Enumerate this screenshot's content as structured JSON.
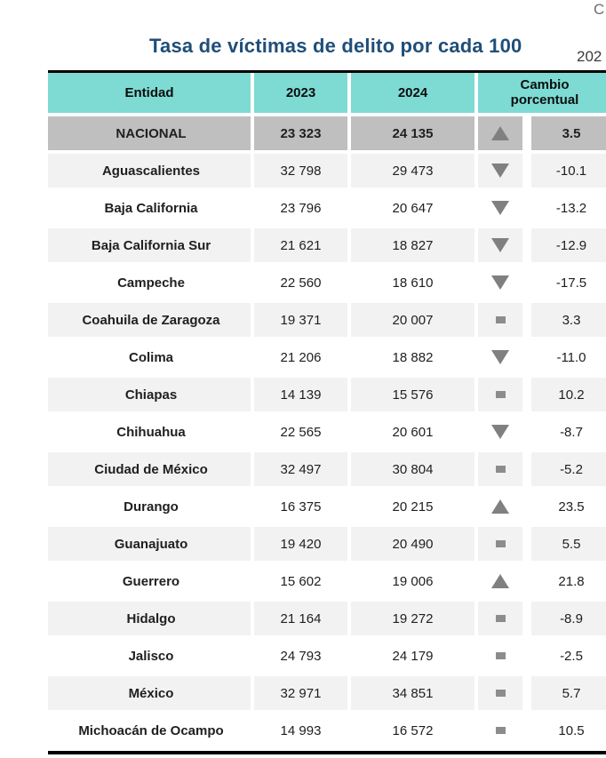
{
  "page": {
    "corner_label": "C",
    "title": "Tasa de víctimas de delito por cada 100",
    "subtitle_year": "202"
  },
  "table": {
    "headers": {
      "entidad": "Entidad",
      "y2023": "2023",
      "y2024": "2024",
      "cambio": "Cambio porcentual"
    },
    "rows": [
      {
        "entidad": "NACIONAL",
        "v2023": "23 323",
        "v2024": "24 135",
        "trend": "up",
        "pct": "3.5",
        "national": true
      },
      {
        "entidad": "Aguascalientes",
        "v2023": "32 798",
        "v2024": "29 473",
        "trend": "down",
        "pct": "-10.1"
      },
      {
        "entidad": "Baja California",
        "v2023": "23 796",
        "v2024": "20 647",
        "trend": "down",
        "pct": "-13.2"
      },
      {
        "entidad": "Baja California Sur",
        "v2023": "21 621",
        "v2024": "18 827",
        "trend": "down",
        "pct": "-12.9"
      },
      {
        "entidad": "Campeche",
        "v2023": "22 560",
        "v2024": "18 610",
        "trend": "down",
        "pct": "-17.5"
      },
      {
        "entidad": "Coahuila de Zaragoza",
        "v2023": "19 371",
        "v2024": "20 007",
        "trend": "flat",
        "pct": "3.3"
      },
      {
        "entidad": "Colima",
        "v2023": "21 206",
        "v2024": "18 882",
        "trend": "down",
        "pct": "-11.0"
      },
      {
        "entidad": "Chiapas",
        "v2023": "14 139",
        "v2024": "15 576",
        "trend": "flat",
        "pct": "10.2"
      },
      {
        "entidad": "Chihuahua",
        "v2023": "22 565",
        "v2024": "20 601",
        "trend": "down",
        "pct": "-8.7"
      },
      {
        "entidad": "Ciudad de México",
        "v2023": "32 497",
        "v2024": "30 804",
        "trend": "flat",
        "pct": "-5.2"
      },
      {
        "entidad": "Durango",
        "v2023": "16 375",
        "v2024": "20 215",
        "trend": "up",
        "pct": "23.5"
      },
      {
        "entidad": "Guanajuato",
        "v2023": "19 420",
        "v2024": "20 490",
        "trend": "flat",
        "pct": "5.5"
      },
      {
        "entidad": "Guerrero",
        "v2023": "15 602",
        "v2024": "19 006",
        "trend": "up",
        "pct": "21.8"
      },
      {
        "entidad": "Hidalgo",
        "v2023": "21 164",
        "v2024": "19 272",
        "trend": "flat",
        "pct": "-8.9"
      },
      {
        "entidad": "Jalisco",
        "v2023": "24 793",
        "v2024": "24 179",
        "trend": "flat",
        "pct": "-2.5"
      },
      {
        "entidad": "México",
        "v2023": "32 971",
        "v2024": "34 851",
        "trend": "flat",
        "pct": "5.7"
      },
      {
        "entidad": "Michoacán de Ocampo",
        "v2023": "14 993",
        "v2024": "16 572",
        "trend": "flat",
        "pct": "10.5"
      }
    ]
  },
  "colors": {
    "header_bg": "#7DDBD4",
    "national_row_bg": "#BFBFBF",
    "alt_row_bg": "#F2F2F2",
    "marker_gray": "#808080",
    "title_navy": "#1F4E79",
    "border_black": "#000000"
  }
}
